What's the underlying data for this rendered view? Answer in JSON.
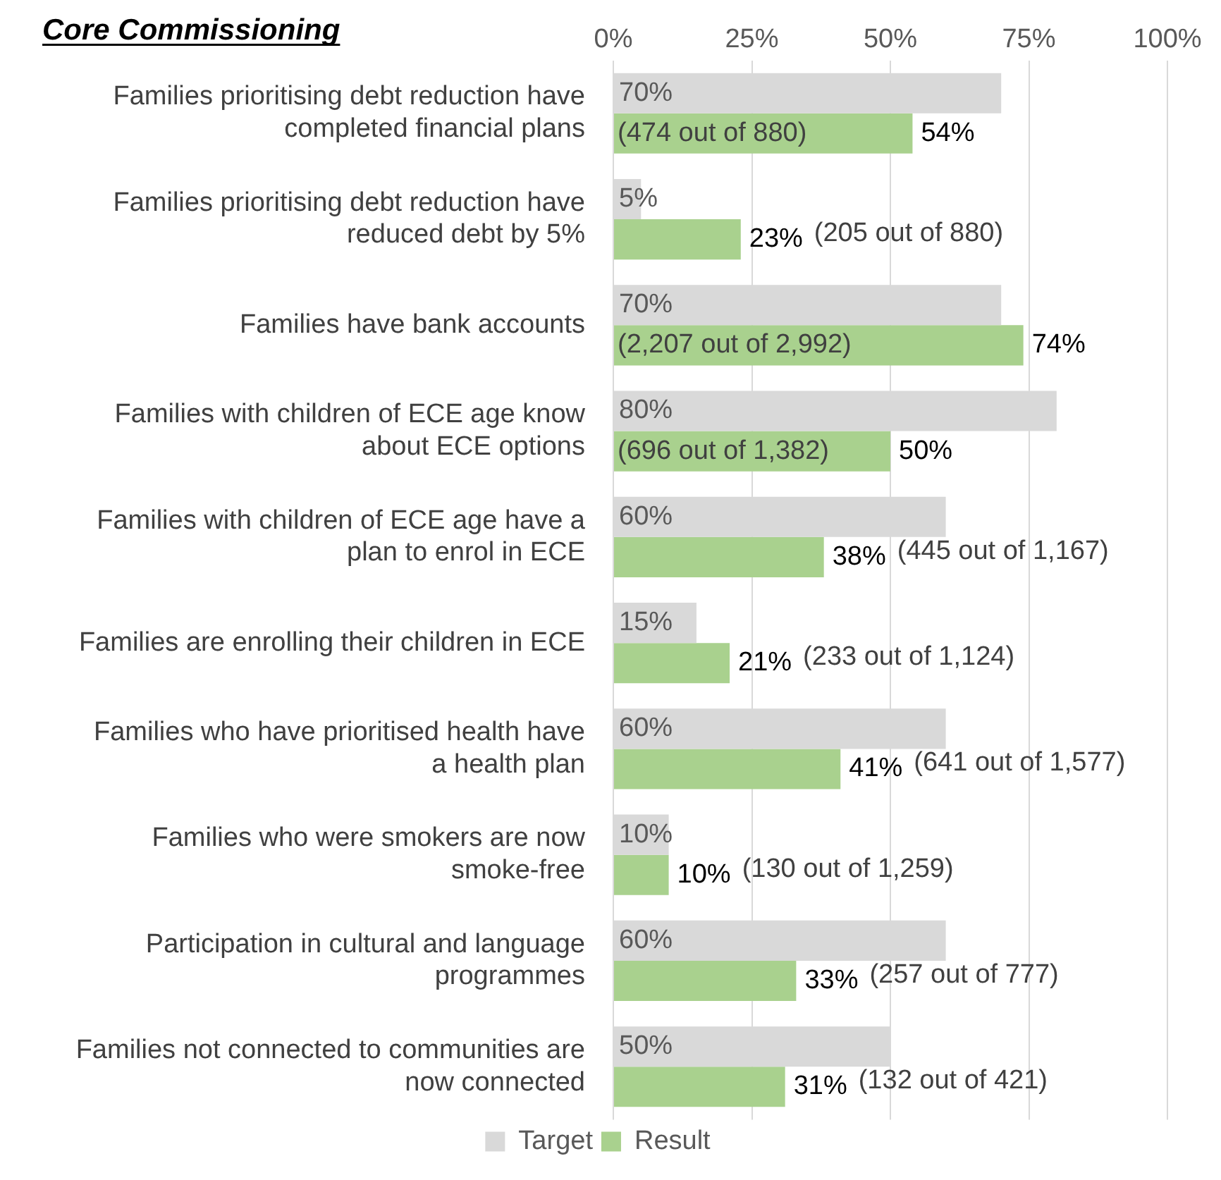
{
  "chart_data": {
    "type": "bar",
    "orientation": "horizontal",
    "title": "Core Commissioning",
    "categories": [
      "Families prioritising debt reduction have completed financial plans",
      "Families prioritising debt reduction have reduced debt by 5%",
      "Families have bank accounts",
      "Families with children of ECE age know about ECE options",
      "Families with children of ECE age have a plan to enrol in ECE",
      "Families are enrolling their children in ECE",
      "Families who have prioritised health have a health plan",
      "Families who were smokers are now smoke-free",
      "Participation in cultural and language programmes",
      "Families not connected to communities are now connected"
    ],
    "series": [
      {
        "name": "Target",
        "color": "#d9d9d9",
        "values": [
          70,
          5,
          70,
          80,
          60,
          15,
          60,
          10,
          60,
          50
        ],
        "value_labels": [
          "70%",
          "5%",
          "70%",
          "80%",
          "60%",
          "15%",
          "60%",
          "10%",
          "60%",
          "50%"
        ]
      },
      {
        "name": "Result",
        "color": "#a9d18e",
        "values": [
          54,
          23,
          74,
          50,
          38,
          21,
          41,
          10,
          33,
          31
        ],
        "value_labels": [
          "54%",
          "23%",
          "74%",
          "50%",
          "38%",
          "21%",
          "41%",
          "10%",
          "33%",
          "31%"
        ]
      }
    ],
    "annotations": [
      "(474 out of 880)",
      "(205 out of 880)",
      "(2,207 out of 2,992)",
      "(696 out of 1,382)",
      "(445 out of 1,167)",
      "(233 out of 1,124)",
      "(641 out of 1,577)",
      "(130 out of 1,259)",
      "(257 out of 777)",
      "(132 out of 421)"
    ],
    "xlim": [
      0,
      100
    ],
    "xticks": [
      {
        "value": 0,
        "label": "0%"
      },
      {
        "value": 25,
        "label": "25%"
      },
      {
        "value": 50,
        "label": "50%"
      },
      {
        "value": 75,
        "label": "75%"
      },
      {
        "value": 100,
        "label": "100%"
      }
    ],
    "grid": "x",
    "legend": "bottom"
  }
}
